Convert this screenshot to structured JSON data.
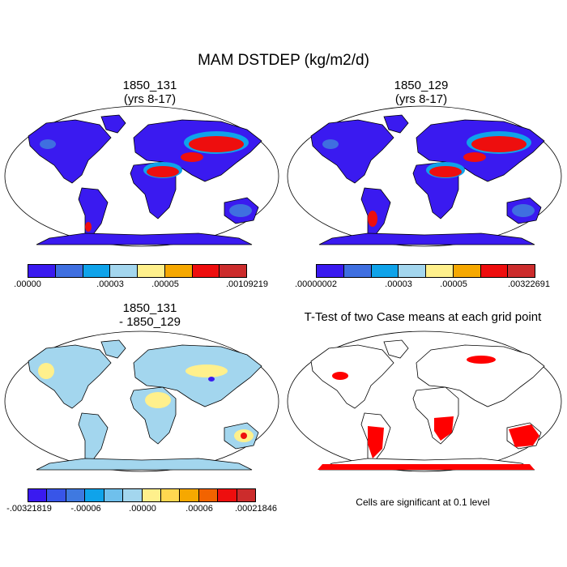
{
  "title": "MAM DSTDEP (kg/m2/d)",
  "panels": [
    {
      "id": "case-1850-131",
      "title_lines": [
        "1850_131",
        "(yrs 8-17)"
      ],
      "colorbar": {
        "colors": [
          "#3a1af0",
          "#3f6fe0",
          "#0fa3ea",
          "#a3d6ee",
          "#fff08c",
          "#f6a800",
          "#ee0e0e",
          "#cc2c2c"
        ],
        "tick_labels": [
          ".00000",
          ".00003",
          ".00005",
          ".00109219"
        ]
      }
    },
    {
      "id": "case-1850-129",
      "title_lines": [
        "1850_129",
        "(yrs 8-17)"
      ],
      "colorbar": {
        "colors": [
          "#3a1af0",
          "#3f6fe0",
          "#0fa3ea",
          "#a3d6ee",
          "#fff08c",
          "#f6a800",
          "#ee0e0e",
          "#cc2c2c"
        ],
        "tick_labels": [
          ".00000002",
          ".00003",
          ".00005",
          ".00322691"
        ]
      }
    },
    {
      "id": "difference",
      "title_lines": [
        "1850_131",
        "- 1850_129"
      ],
      "colorbar": {
        "colors": [
          "#3a1af0",
          "#3855e8",
          "#3f79e0",
          "#0fa3ea",
          "#6fc0ec",
          "#a3d6ee",
          "#fff08c",
          "#ffd750",
          "#f6a800",
          "#f26300",
          "#ee0e0e",
          "#cc2c2c"
        ],
        "tick_labels": [
          "-.00321819",
          "-.00006",
          ".00000",
          ".00006",
          ".00021846"
        ]
      }
    },
    {
      "id": "t-test",
      "title_lines": [
        "T-Test of two Case means at each grid point"
      ],
      "note": "Cells are significant at 0.1 level",
      "significant_color": "#ff0000"
    }
  ]
}
